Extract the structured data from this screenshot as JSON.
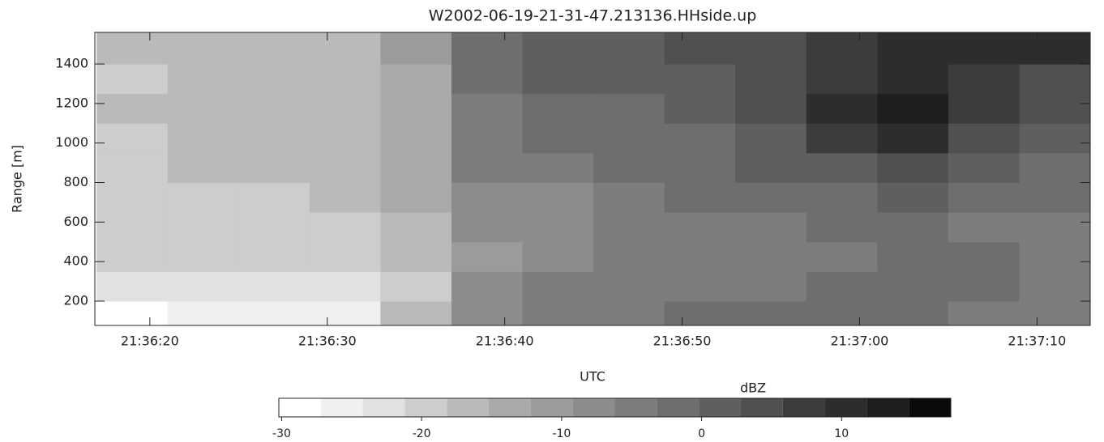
{
  "chart_data": {
    "type": "heatmap",
    "title": "W2002-06-19-21-31-47.213136.HHside.up",
    "ylabel": "Range [m]",
    "xlabel": "UTC",
    "xlim": [
      77776.9,
      77833
    ],
    "ylim": [
      77,
      1560
    ],
    "xticks": [
      {
        "value": 77780,
        "label": "21:36:20"
      },
      {
        "value": 77790,
        "label": "21:36:30"
      },
      {
        "value": 77800,
        "label": "21:36:40"
      },
      {
        "value": 77810,
        "label": "21:36:50"
      },
      {
        "value": 77820,
        "label": "21:37:00"
      },
      {
        "value": 77830,
        "label": "21:37:10"
      }
    ],
    "yticks": [
      200,
      400,
      600,
      800,
      1000,
      1200,
      1400
    ],
    "x_edges": [
      77777,
      77781,
      77785,
      77789,
      77793,
      77797,
      77801,
      77805,
      77809,
      77813,
      77817,
      77821,
      77825,
      77829,
      77833
    ],
    "y_edges": [
      77,
      200,
      350,
      500,
      650,
      800,
      950,
      1100,
      1250,
      1400,
      1560
    ],
    "z": [
      [
        -28,
        -27,
        -27,
        -26,
        -16,
        -8,
        -6,
        -5,
        -3,
        -2,
        -2,
        -3,
        -4,
        -5
      ],
      [
        -24,
        -23,
        -23,
        -23,
        -19,
        -9,
        -6,
        -4,
        -6,
        -5,
        -3,
        -2,
        -3,
        -4
      ],
      [
        -21,
        -21,
        -21,
        -21,
        -18,
        -10,
        -9,
        -6,
        -5,
        -6,
        -4,
        -3,
        -3,
        -4
      ],
      [
        -21,
        -20,
        -21,
        -20,
        -17,
        -9,
        -8,
        -5,
        -4,
        -4,
        -3,
        -2,
        -4,
        -4
      ],
      [
        -20,
        -19,
        -19,
        -18,
        -15,
        -8,
        -7,
        -5,
        -3,
        -2,
        -1,
        0,
        -2,
        -3
      ],
      [
        -19,
        -18,
        -18,
        -17,
        -14,
        -6,
        -4,
        -3,
        -2,
        0,
        2,
        3,
        0,
        -1
      ],
      [
        -19,
        -18,
        -18,
        -16,
        -14,
        -5,
        -3,
        -3,
        -1,
        1,
        7,
        10,
        4,
        1
      ],
      [
        -18,
        -18,
        -17,
        -16,
        -13,
        -4,
        -1,
        -1,
        0,
        3,
        10,
        12,
        7,
        3
      ],
      [
        -19,
        -18,
        -17,
        -17,
        -14,
        -3,
        0,
        1,
        1,
        4,
        8,
        10,
        7,
        5
      ],
      [
        -18,
        -18,
        -17,
        -16,
        -12,
        -1,
        1,
        2,
        3,
        5,
        8,
        9,
        10,
        9
      ]
    ],
    "colorbar": {
      "label": "dBZ",
      "levels": [
        -30.2,
        -27.2,
        -24.2,
        -21.2,
        -18.2,
        -15.2,
        -12.2,
        -9.2,
        -6.2,
        -3.2,
        -0.2,
        2.8,
        5.8,
        8.8,
        11.8,
        14.8,
        17.8
      ],
      "colors": [
        "#ffffff",
        "#f0f0f0",
        "#e1e1e1",
        "#cdcdcd",
        "#bababa",
        "#aaaaaa",
        "#9b9b9b",
        "#8c8c8c",
        "#7d7d7d",
        "#6e6e6e",
        "#5f5f5f",
        "#505050",
        "#3c3c3c",
        "#2d2d2d",
        "#1e1e1e",
        "#0a0a0a"
      ],
      "ticks": [
        -30,
        -20,
        -10,
        0,
        10
      ]
    }
  }
}
